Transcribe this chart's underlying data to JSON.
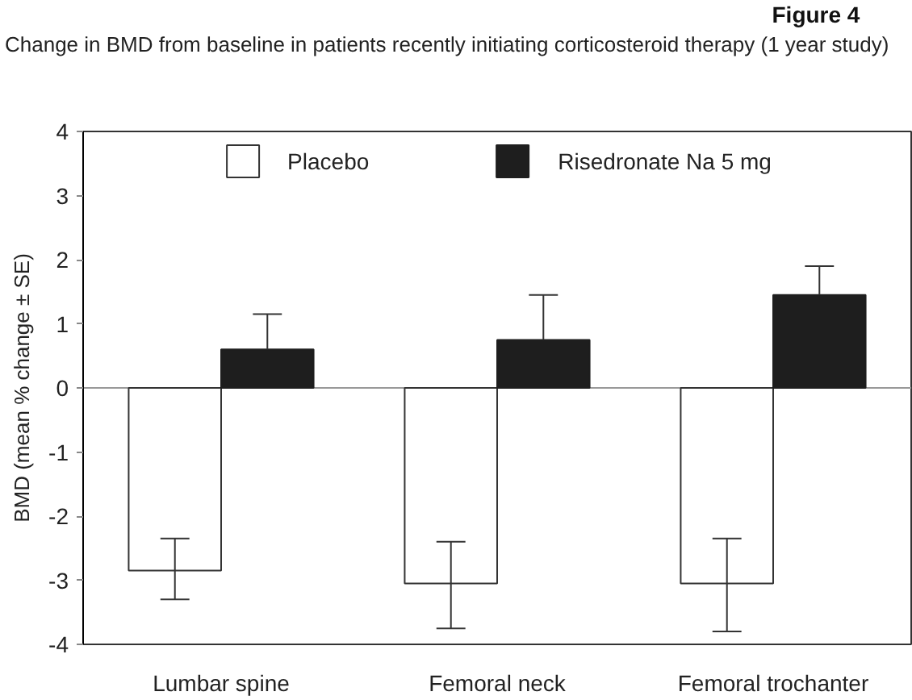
{
  "chart_data": {
    "type": "bar",
    "title": "Figure 4",
    "subtitle": "Change in BMD from baseline in patients recently initiating corticosteroid therapy (1 year study)",
    "ylabel": "BMD (mean % change ± SE)",
    "categories": [
      "Lumbar spine",
      "Femoral neck",
      "Femoral trochanter"
    ],
    "series": [
      {
        "name": "Placebo",
        "color": "#ffffff",
        "values": [
          -2.85,
          -3.05,
          -3.05
        ],
        "errors": [
          [
            -3.3,
            -2.35
          ],
          [
            -3.75,
            -2.4
          ],
          [
            -3.8,
            -2.35
          ]
        ]
      },
      {
        "name": "Risedronate Na 5 mg",
        "color": "#1e1e1e",
        "values": [
          0.6,
          0.75,
          1.45
        ],
        "errors": [
          [
            0.6,
            1.15
          ],
          [
            0.75,
            1.45
          ],
          [
            1.45,
            1.9
          ]
        ]
      }
    ],
    "ylim": [
      -4,
      4
    ],
    "yticks": [
      -4,
      -3,
      -2,
      -1,
      0,
      1,
      2,
      3,
      4
    ],
    "legend": "top",
    "grid": false,
    "ref_lines": [
      {
        "axis": "y",
        "value": 0,
        "color": "#999999"
      }
    ]
  }
}
